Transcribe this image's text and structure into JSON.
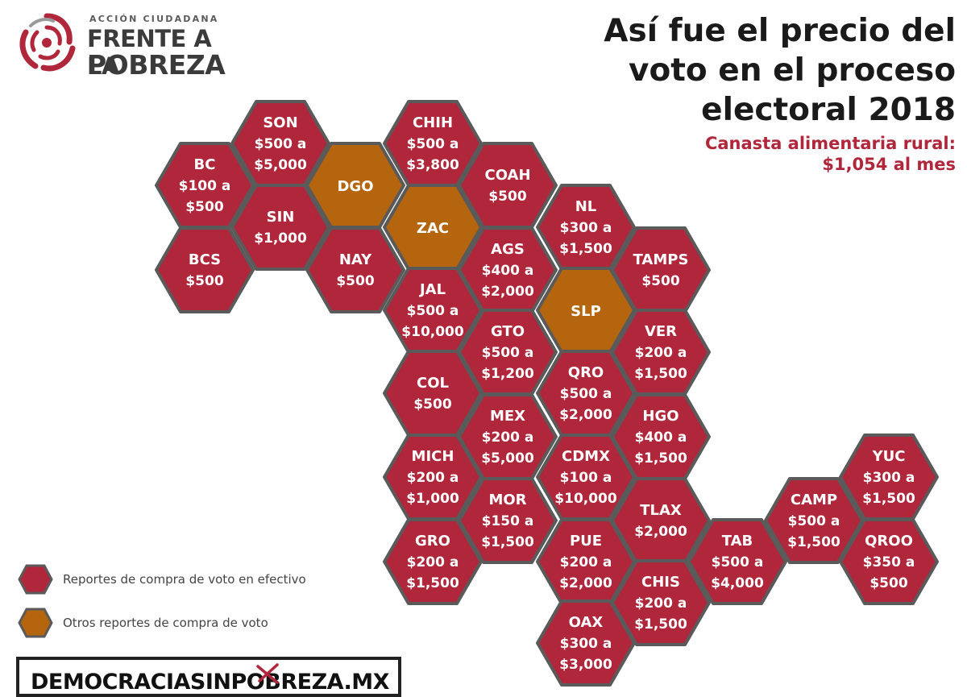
{
  "logo": {
    "small": "ACCIÓN CIUDADANA",
    "line1": "FRENTE A LA",
    "line2": "POBREZA",
    "colors": [
      "#b0263a",
      "#8a8a8a"
    ]
  },
  "title": {
    "lines": [
      "Así fue el precio del",
      "voto en el proceso",
      "electoral 2018"
    ],
    "subtitle_1": "Canasta alimentaria rural:",
    "subtitle_2": "$1,054 al mes"
  },
  "colors": {
    "cash": "#b0263a",
    "other": "#b5650d",
    "border": "#5a5a5a",
    "text": "#ffffff",
    "title": "#1a1a1a",
    "subtitle": "#b0263a"
  },
  "legend": [
    {
      "label": "Reportes de compra de voto en efectivo",
      "type": "cash"
    },
    {
      "label": "Otros reportes de compra de voto",
      "type": "other"
    }
  ],
  "states": [
    {
      "code": "BC",
      "lines": [
        "$100 a",
        "$500"
      ],
      "type": "cash"
    },
    {
      "code": "SON",
      "lines": [
        "$500 a",
        "$5,000"
      ],
      "type": "cash"
    },
    {
      "code": "BCS",
      "lines": [
        "$500"
      ],
      "type": "cash"
    },
    {
      "code": "SIN",
      "lines": [
        "$1,000"
      ],
      "type": "cash"
    },
    {
      "code": "DGO",
      "lines": [],
      "type": "other"
    },
    {
      "code": "NAY",
      "lines": [
        "$500"
      ],
      "type": "cash"
    },
    {
      "code": "CHIH",
      "lines": [
        "$500 a",
        "$3,800"
      ],
      "type": "cash"
    },
    {
      "code": "ZAC",
      "lines": [],
      "type": "other"
    },
    {
      "code": "JAL",
      "lines": [
        "$500 a",
        "$10,000"
      ],
      "type": "cash"
    },
    {
      "code": "COL",
      "lines": [
        "$500"
      ],
      "type": "cash"
    },
    {
      "code": "MICH",
      "lines": [
        "$200 a",
        "$1,000"
      ],
      "type": "cash"
    },
    {
      "code": "GRO",
      "lines": [
        "$200 a",
        "$1,500"
      ],
      "type": "cash"
    },
    {
      "code": "COAH",
      "lines": [
        "$500"
      ],
      "type": "cash"
    },
    {
      "code": "AGS",
      "lines": [
        "$400 a",
        "$2,000"
      ],
      "type": "cash"
    },
    {
      "code": "GTO",
      "lines": [
        "$500 a",
        "$1,200"
      ],
      "type": "cash"
    },
    {
      "code": "MEX",
      "lines": [
        "$200 a",
        "$5,000"
      ],
      "type": "cash"
    },
    {
      "code": "MOR",
      "lines": [
        "$150 a",
        "$1,500"
      ],
      "type": "cash"
    },
    {
      "code": "NL",
      "lines": [
        "$300 a",
        "$1,500"
      ],
      "type": "cash"
    },
    {
      "code": "SLP",
      "lines": [],
      "type": "other"
    },
    {
      "code": "QRO",
      "lines": [
        "$500 a",
        "$2,000"
      ],
      "type": "cash"
    },
    {
      "code": "CDMX",
      "lines": [
        "$100 a",
        "$10,000"
      ],
      "type": "cash"
    },
    {
      "code": "PUE",
      "lines": [
        "$200 a",
        "$2,000"
      ],
      "type": "cash"
    },
    {
      "code": "OAX",
      "lines": [
        "$300 a",
        "$3,000"
      ],
      "type": "cash"
    },
    {
      "code": "TAMPS",
      "lines": [
        "$500"
      ],
      "type": "cash"
    },
    {
      "code": "VER",
      "lines": [
        "$200 a",
        "$1,500"
      ],
      "type": "cash"
    },
    {
      "code": "HGO",
      "lines": [
        "$400 a",
        "$1,500"
      ],
      "type": "cash"
    },
    {
      "code": "TLAX",
      "lines": [
        "$2,000"
      ],
      "type": "cash"
    },
    {
      "code": "CHIS",
      "lines": [
        "$200 a",
        "$1,500"
      ],
      "type": "cash"
    },
    {
      "code": "TAB",
      "lines": [
        "$500 a",
        "$4,000"
      ],
      "type": "cash"
    },
    {
      "code": "CAMP",
      "lines": [
        "$500 a",
        "$1,500"
      ],
      "type": "cash"
    },
    {
      "code": "YUC",
      "lines": [
        "$300 a",
        "$1,500"
      ],
      "type": "cash"
    },
    {
      "code": "QROO",
      "lines": [
        "$350 a",
        "$500"
      ],
      "type": "cash"
    }
  ],
  "footer": {
    "text": "DEMOCRACIASINPOBREZA.MX"
  }
}
